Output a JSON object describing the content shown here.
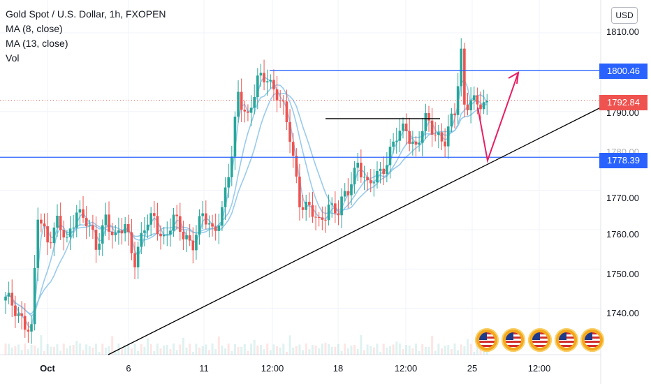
{
  "legend": {
    "title": "Gold Spot / U.S. Dollar, 1h, FXOPEN",
    "ma8": "MA (8, close)",
    "ma13": "MA (13, close)",
    "vol": "Vol"
  },
  "currency_button": "USD",
  "y_axis": {
    "ticks": [
      "1810.00",
      "1790.00",
      "1780.00",
      "1770.00",
      "1760.00",
      "1750.00",
      "1740.00"
    ],
    "tick_values": [
      1810,
      1790,
      1780,
      1770,
      1760,
      1750,
      1740
    ]
  },
  "price_labels": {
    "resistance": "1800.46",
    "current": "1792.84",
    "support": "1778.39"
  },
  "x_axis": {
    "ticks": [
      {
        "label": "Oct",
        "bold": true
      },
      {
        "label": "6",
        "bold": false
      },
      {
        "label": "11",
        "bold": false
      },
      {
        "label": "12:00",
        "bold": false
      },
      {
        "label": "18",
        "bold": false
      },
      {
        "label": "12:00",
        "bold": false
      },
      {
        "label": "25",
        "bold": false
      },
      {
        "label": "12:00",
        "bold": false
      }
    ]
  },
  "colors": {
    "up": "#26a69a",
    "down": "#ef5350",
    "ma": "#8ec5ea",
    "hline": "#2962ff",
    "trendline": "#000000",
    "arrow": "#e91e63",
    "current_price": "#ef5350"
  },
  "calendar_events": [
    "us-flag-icon",
    "us-flag-icon",
    "us-flag-icon",
    "us-flag-icon",
    "us-flag-icon"
  ],
  "chart_data": {
    "type": "candlestick",
    "symbol": "Gold Spot / U.S. Dollar",
    "interval": "1h",
    "broker": "FXOPEN",
    "ylim": [
      1733,
      1815
    ],
    "horizontal_levels": [
      1800.46,
      1778.39
    ],
    "current_price": 1792.84,
    "short_level": 1788.2,
    "close_path": [
      [
        0,
        1742
      ],
      [
        5,
        1738
      ],
      [
        8,
        1734
      ],
      [
        10,
        1763
      ],
      [
        13,
        1758
      ],
      [
        16,
        1762
      ],
      [
        19,
        1756
      ],
      [
        22,
        1766
      ],
      [
        25,
        1762
      ],
      [
        28,
        1755
      ],
      [
        31,
        1764
      ],
      [
        34,
        1757
      ],
      [
        37,
        1761
      ],
      [
        40,
        1753
      ],
      [
        43,
        1760
      ],
      [
        46,
        1763
      ],
      [
        49,
        1758
      ],
      [
        52,
        1762
      ],
      [
        55,
        1759
      ],
      [
        58,
        1757
      ],
      [
        61,
        1763
      ],
      [
        64,
        1760
      ],
      [
        67,
        1765
      ],
      [
        70,
        1778
      ],
      [
        72,
        1795
      ],
      [
        75,
        1789
      ],
      [
        78,
        1797
      ],
      [
        81,
        1799
      ],
      [
        84,
        1795
      ],
      [
        86,
        1790
      ],
      [
        88,
        1783
      ],
      [
        91,
        1768
      ],
      [
        94,
        1765
      ],
      [
        97,
        1761
      ],
      [
        100,
        1767
      ],
      [
        103,
        1764
      ],
      [
        106,
        1770
      ],
      [
        109,
        1778
      ],
      [
        112,
        1770
      ],
      [
        115,
        1774
      ],
      [
        118,
        1778
      ],
      [
        121,
        1783
      ],
      [
        124,
        1786
      ],
      [
        127,
        1781
      ],
      [
        130,
        1787
      ],
      [
        133,
        1785
      ],
      [
        136,
        1783
      ],
      [
        139,
        1789
      ],
      [
        141,
        1805
      ],
      [
        142,
        1792
      ],
      [
        144,
        1794
      ],
      [
        146,
        1791
      ]
    ]
  }
}
